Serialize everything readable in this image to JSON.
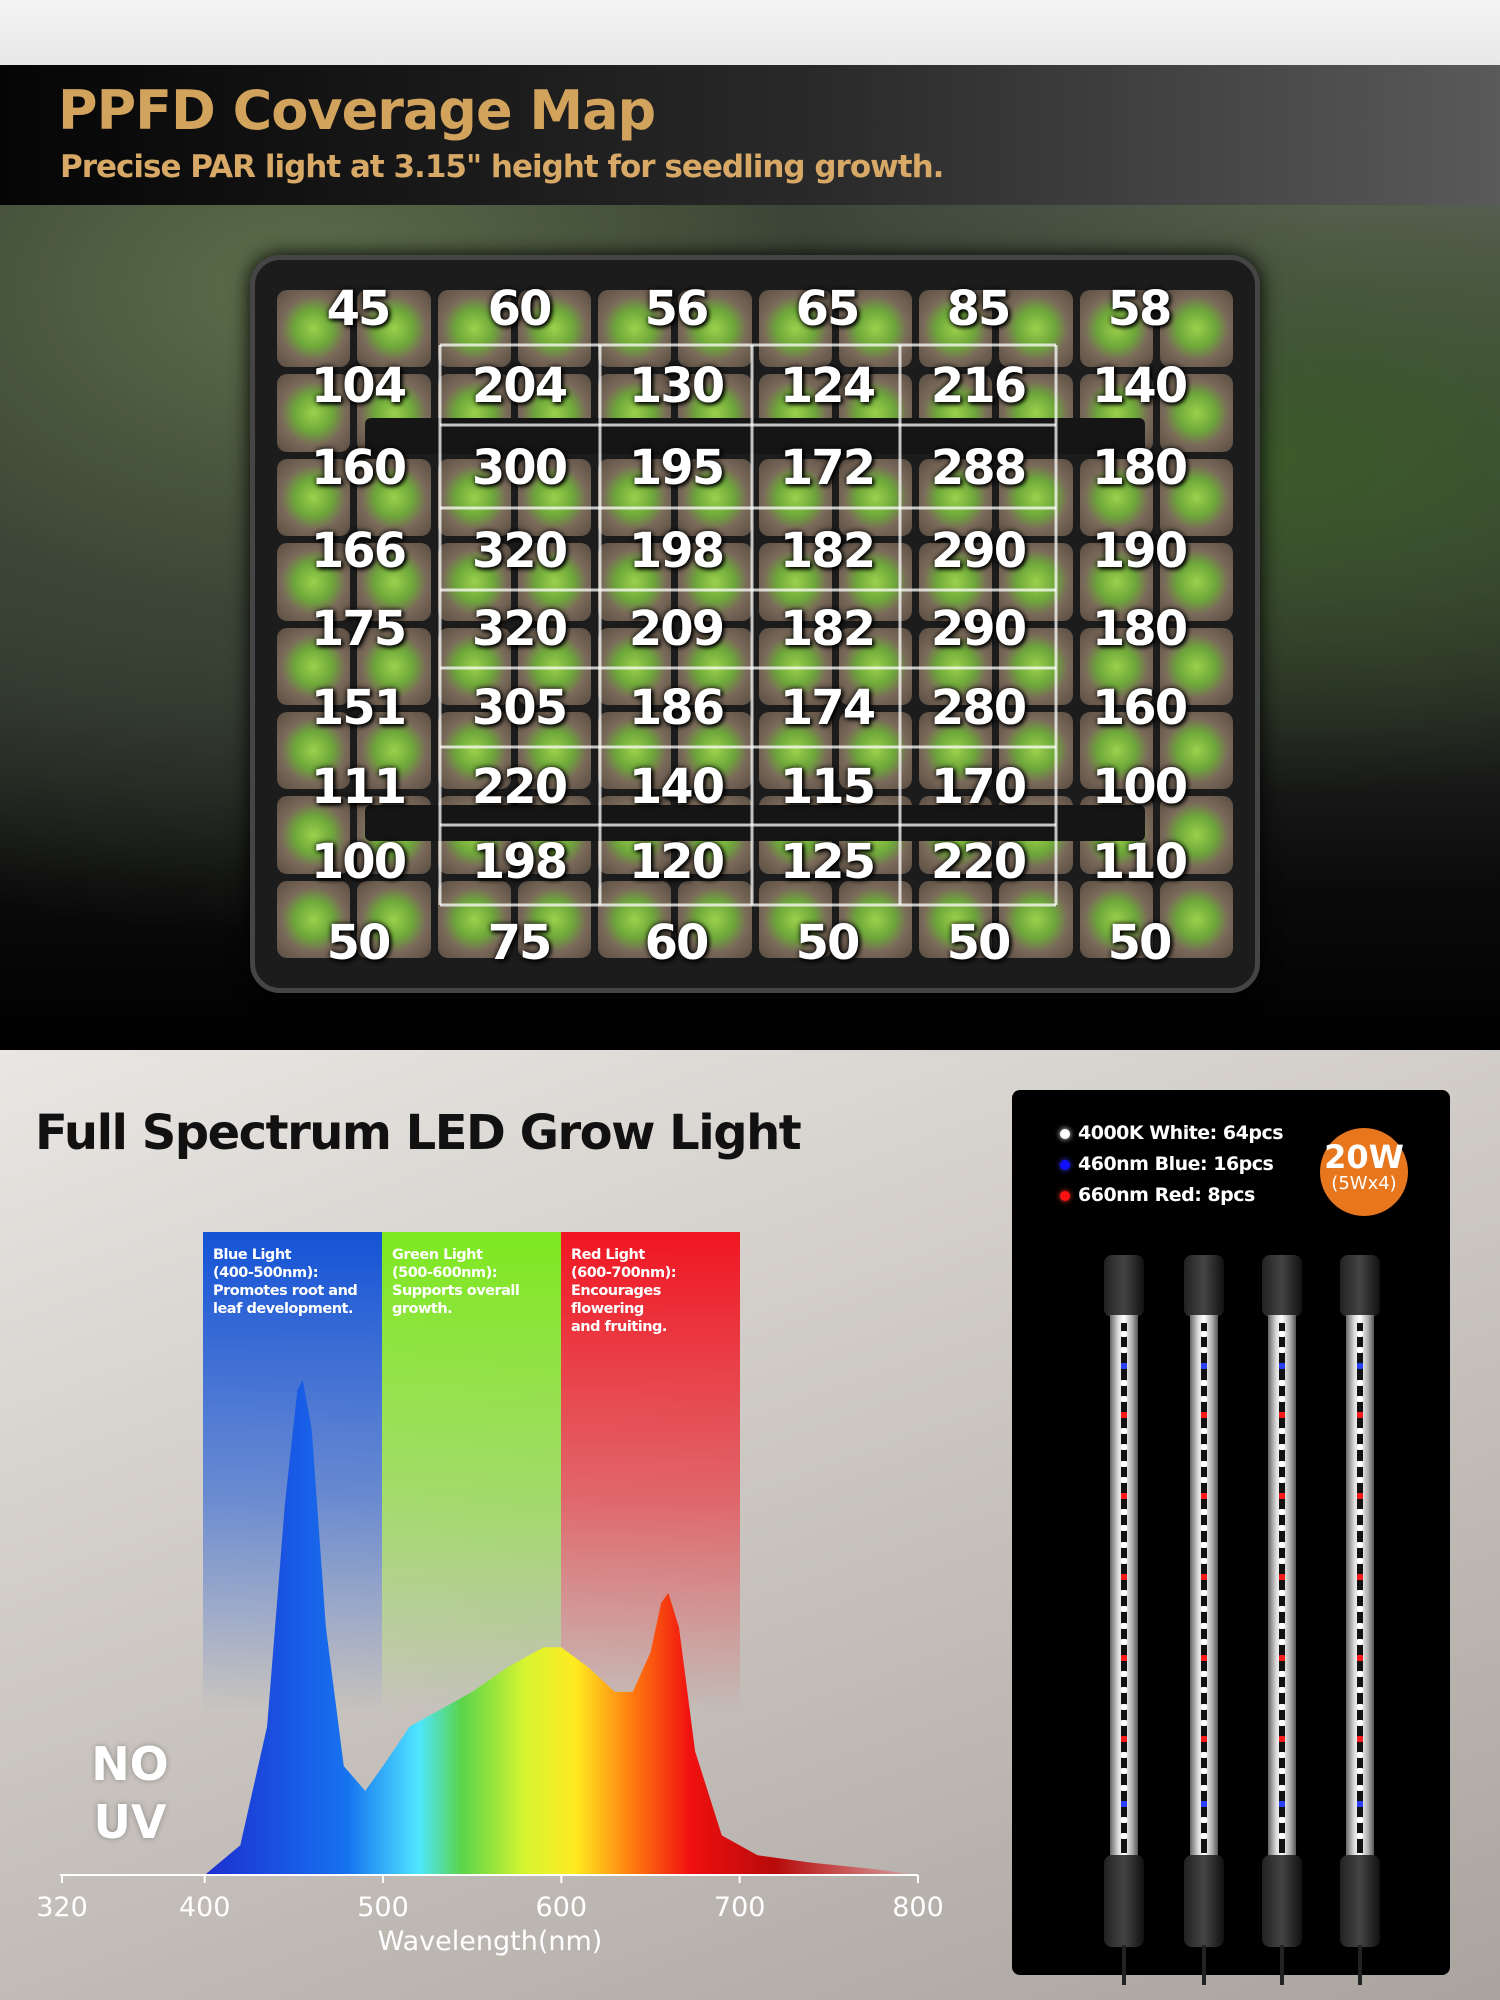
{
  "header": {
    "title": "PPFD Coverage Map",
    "subtitle": "Precise PAR light at 3.15\" height for seedling growth."
  },
  "ppfd_grid": {
    "rows": [
      [
        45,
        60,
        56,
        65,
        85,
        58
      ],
      [
        104,
        204,
        130,
        124,
        216,
        140
      ],
      [
        160,
        300,
        195,
        172,
        288,
        180
      ],
      [
        166,
        320,
        198,
        182,
        290,
        190
      ],
      [
        175,
        320,
        209,
        182,
        290,
        180
      ],
      [
        151,
        305,
        186,
        174,
        280,
        160
      ],
      [
        111,
        220,
        140,
        115,
        170,
        100
      ],
      [
        100,
        198,
        120,
        125,
        220,
        110
      ],
      [
        50,
        75,
        60,
        50,
        50,
        50
      ]
    ]
  },
  "spectrum": {
    "title": "Full Spectrum LED Grow Light",
    "no_uv": [
      "NO",
      "UV"
    ],
    "bands": [
      {
        "title": "Blue Light",
        "range": "(400-500nm):",
        "desc": [
          "Promotes root and",
          "leaf development."
        ],
        "color": "#1453d6"
      },
      {
        "title": "Green Light",
        "range": "(500-600nm):",
        "desc": [
          "Supports overall",
          "growth."
        ],
        "color": "#7ee81f"
      },
      {
        "title": "Red Light",
        "range": "(600-700nm):",
        "desc": [
          "Encourages flowering",
          "and fruiting."
        ],
        "color": "#f01622"
      }
    ]
  },
  "chart_data": {
    "type": "area",
    "xlabel": "Wavelength(nm)",
    "ylabel": "",
    "xlim": [
      320,
      800
    ],
    "xticks": [
      320,
      400,
      500,
      600,
      700,
      800
    ],
    "grid": false,
    "x": [
      400,
      420,
      435,
      445,
      452,
      455,
      460,
      468,
      478,
      490,
      500,
      515,
      530,
      550,
      570,
      590,
      600,
      615,
      630,
      640,
      650,
      656,
      660,
      666,
      675,
      690,
      710,
      740,
      780,
      800
    ],
    "y": [
      0,
      0.06,
      0.3,
      0.75,
      0.98,
      1.0,
      0.9,
      0.5,
      0.22,
      0.17,
      0.22,
      0.3,
      0.33,
      0.37,
      0.42,
      0.46,
      0.46,
      0.42,
      0.37,
      0.37,
      0.45,
      0.55,
      0.57,
      0.5,
      0.25,
      0.08,
      0.04,
      0.025,
      0.01,
      0
    ]
  },
  "panel": {
    "legend": [
      {
        "label": "4000K White: 64pcs",
        "color": "#ffffff"
      },
      {
        "label": "460nm Blue: 16pcs",
        "color": "#1010ff"
      },
      {
        "label": "660nm Red: 8pcs",
        "color": "#ff1010"
      }
    ],
    "power": "20W",
    "power_sub": "(5Wx4)"
  }
}
